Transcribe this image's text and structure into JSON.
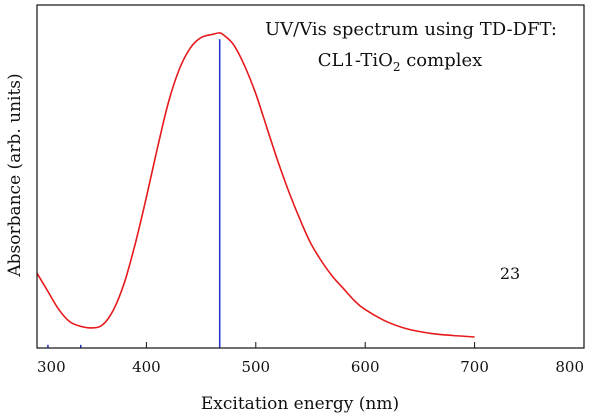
{
  "chart_data": {
    "type": "line",
    "title_line1": "UV/Vis spectrum using TD-DFT:",
    "title_line2_prefix": "CL1-TiO",
    "title_line2_sub": "2",
    "title_line2_suffix": " complex",
    "xlabel": "Excitation energy (nm)",
    "ylabel": "Absorbance (arb. units)",
    "annotation": "23",
    "xlim": [
      300,
      800
    ],
    "ylim": [
      0,
      1.0
    ],
    "xticks": [
      300,
      400,
      500,
      600,
      700,
      800
    ],
    "xtick_labels": [
      "300",
      "400",
      "500",
      "600",
      "700",
      "800"
    ],
    "grid": false,
    "legend": "none",
    "colors": {
      "spectrum": "#e8191c",
      "sticks": "#1f2fd0",
      "frame": "#111111"
    },
    "series": [
      {
        "kind": "curve",
        "x": [
          300,
          310,
          320,
          330,
          340,
          350,
          360,
          370,
          380,
          390,
          400,
          410,
          420,
          430,
          440,
          450,
          460,
          466,
          470,
          480,
          490,
          500,
          510,
          520,
          530,
          540,
          550,
          560,
          570,
          580,
          590,
          600,
          620,
          640,
          660,
          680,
          700
        ],
        "y": [
          0.21,
          0.15,
          0.09,
          0.05,
          0.035,
          0.03,
          0.04,
          0.09,
          0.18,
          0.31,
          0.46,
          0.62,
          0.77,
          0.88,
          0.95,
          0.985,
          0.995,
          1.0,
          0.995,
          0.96,
          0.89,
          0.8,
          0.69,
          0.58,
          0.48,
          0.39,
          0.31,
          0.25,
          0.2,
          0.16,
          0.12,
          0.09,
          0.05,
          0.025,
          0.012,
          0.005,
          0.0
        ]
      },
      {
        "kind": "sticks",
        "x": [
          310,
          340,
          467
        ],
        "y": [
          0.01,
          0.01,
          0.98
        ]
      }
    ]
  }
}
